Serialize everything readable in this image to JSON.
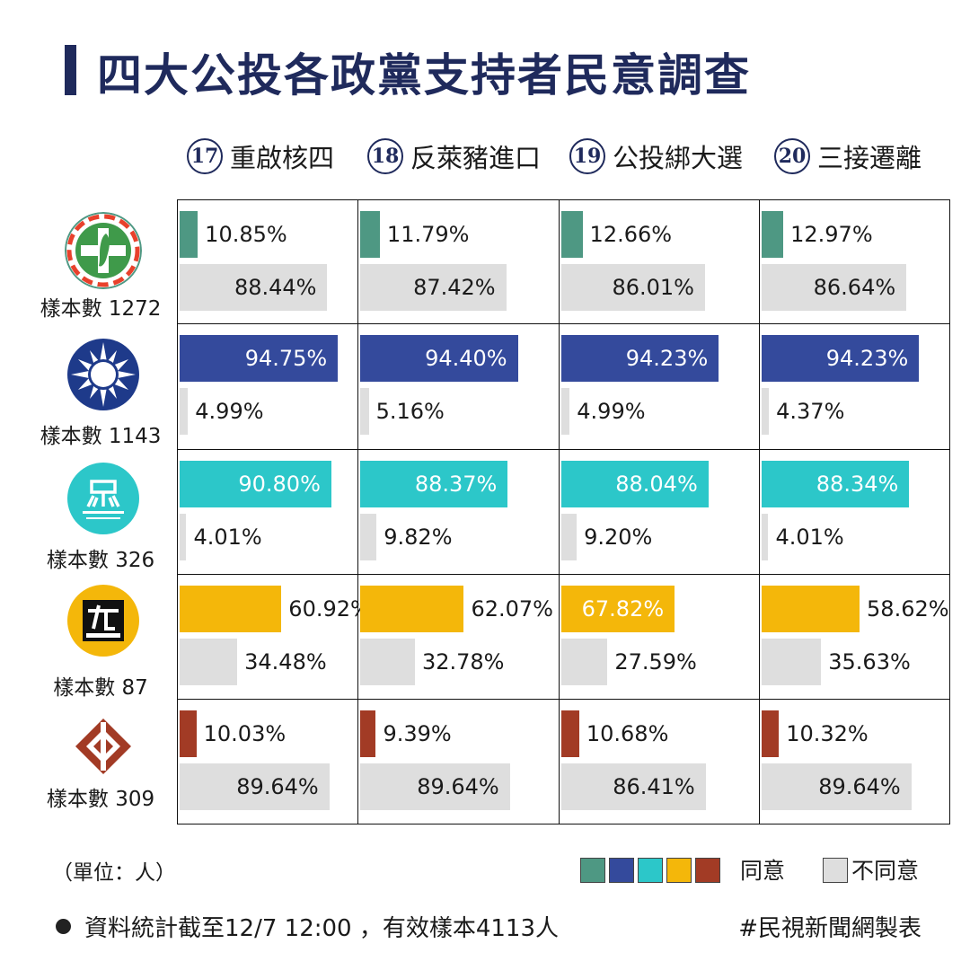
{
  "title": "四大公投各政黨支持者民意調查",
  "colors": {
    "dpp": "#4e9883",
    "kmt": "#344a9c",
    "tpp": "#2cc7c9",
    "npp": "#f4b70a",
    "tsp": "#a23b25",
    "disagree": "#dedede",
    "title": "#1f2a5c"
  },
  "questions": [
    {
      "num": "17",
      "label": "重啟核四"
    },
    {
      "num": "18",
      "label": "反萊豬進口"
    },
    {
      "num": "19",
      "label": "公投綁大選"
    },
    {
      "num": "20",
      "label": "三接遷離"
    }
  ],
  "parties": [
    {
      "logo_icon": "dpp-logo-icon",
      "sample": "樣本數 1272"
    },
    {
      "logo_icon": "kmt-logo-icon",
      "sample": "樣本數 1143"
    },
    {
      "logo_icon": "tpp-logo-icon",
      "sample": "樣本數 326"
    },
    {
      "logo_icon": "npp-logo-icon",
      "sample": "樣本數 87"
    },
    {
      "logo_icon": "tsp-logo-icon",
      "sample": "樣本數 309"
    }
  ],
  "chart_data": {
    "type": "bar",
    "categories": [
      "重啟核四",
      "反萊豬進口",
      "公投綁大選",
      "三接遷離"
    ],
    "unit": "%",
    "series": [
      {
        "name": "同意",
        "rows": [
          [
            "10.85%",
            "11.79%",
            "12.66%",
            "12.97%"
          ],
          [
            "94.75%",
            "94.40%",
            "94.23%",
            "94.23%"
          ],
          [
            "90.80%",
            "88.37%",
            "88.04%",
            "88.34%"
          ],
          [
            "60.92%",
            "62.07%",
            "67.82%",
            "58.62%"
          ],
          [
            "10.03%",
            "9.39%",
            "10.68%",
            "10.32%"
          ]
        ],
        "values": [
          [
            10.85,
            11.79,
            12.66,
            12.97
          ],
          [
            94.75,
            94.4,
            94.23,
            94.23
          ],
          [
            90.8,
            88.37,
            88.04,
            88.34
          ],
          [
            60.92,
            62.07,
            67.82,
            58.62
          ],
          [
            10.03,
            9.39,
            10.68,
            10.32
          ]
        ]
      },
      {
        "name": "不同意",
        "rows": [
          [
            "88.44%",
            "87.42%",
            "86.01%",
            "86.64%"
          ],
          [
            "4.99%",
            "5.16%",
            "4.99%",
            "4.37%"
          ],
          [
            "4.01%",
            "9.82%",
            "9.20%",
            "4.01%"
          ],
          [
            "34.48%",
            "32.78%",
            "27.59%",
            "35.63%"
          ],
          [
            "89.64%",
            "89.64%",
            "86.41%",
            "89.64%"
          ]
        ],
        "values": [
          [
            88.44,
            87.42,
            86.01,
            86.64
          ],
          [
            4.99,
            5.16,
            4.99,
            4.37
          ],
          [
            4.01,
            9.82,
            9.2,
            4.01
          ],
          [
            34.48,
            32.78,
            27.59,
            35.63
          ],
          [
            89.64,
            89.64,
            86.41,
            89.64
          ]
        ]
      }
    ]
  },
  "legend": {
    "agree": "同意",
    "disagree": "不同意"
  },
  "unit_note": "（單位：人）",
  "footer_note": "資料統計截至12/7 12:00 ，有效樣本4113人",
  "footer_source": "#民視新聞網製表"
}
